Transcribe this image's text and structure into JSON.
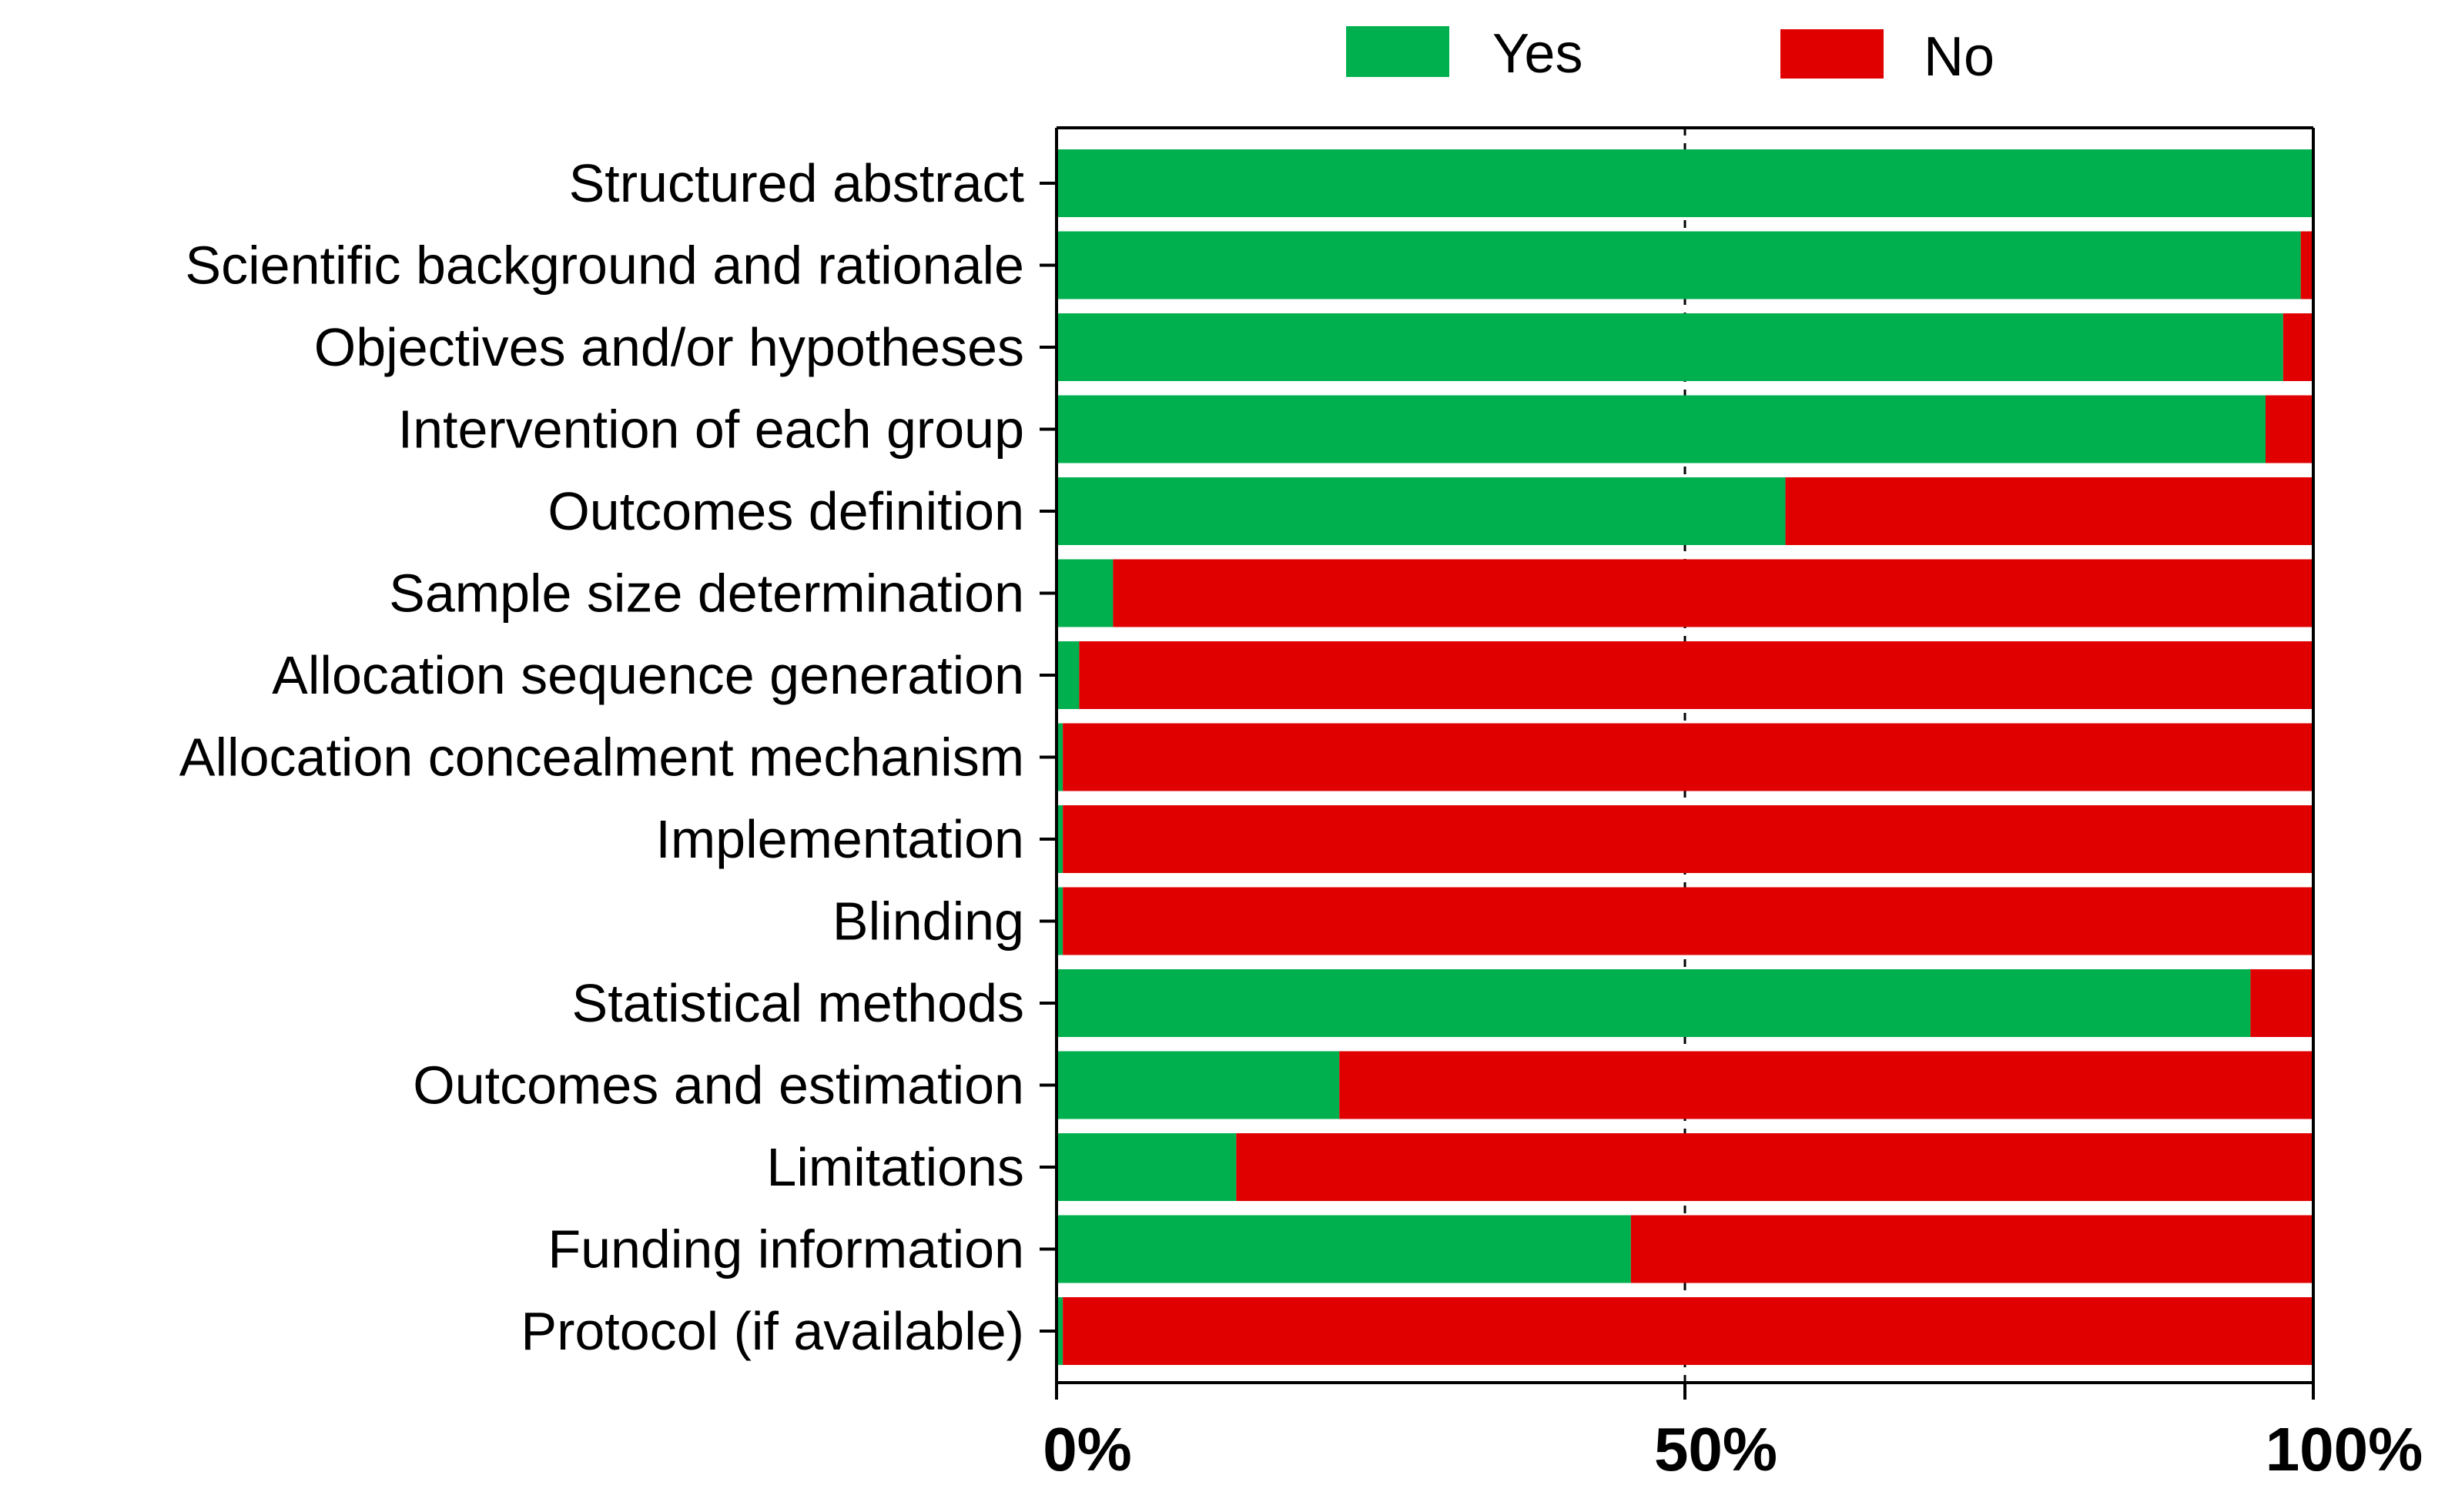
{
  "chart_data": {
    "type": "bar",
    "orientation": "horizontal",
    "stacked": true,
    "title": "",
    "xlabel": "",
    "ylabel": "",
    "xlim": [
      0,
      100
    ],
    "x_ticks": [
      {
        "value": 0,
        "label": "0%"
      },
      {
        "value": 50,
        "label": "50%"
      },
      {
        "value": 100,
        "label": "100%"
      }
    ],
    "gridlines": "dashed vertical at 50%",
    "legend_position": "top",
    "categories": [
      "Structured abstract",
      "Scientific background and rationale",
      "Objectives and/or hypotheses",
      "Intervention of each group",
      "Outcomes definition",
      "Sample size determination",
      "Allocation sequence generation",
      "Allocation concealment mechanism",
      "Implementation",
      "Blinding",
      "Statistical methods",
      "Outcomes and estimation",
      "Limitations",
      "Funding information",
      "Protocol (if available)"
    ],
    "series": [
      {
        "name": "Yes",
        "color": "#00b04f",
        "values": [
          100,
          99,
          97.6,
          96.2,
          58,
          4.5,
          1.8,
          0.5,
          0.5,
          0.5,
          95,
          22.5,
          14.3,
          45.7,
          0.5
        ]
      },
      {
        "name": "No",
        "color": "#e00000",
        "values": [
          0,
          1,
          2.4,
          3.8,
          42,
          95.5,
          98.2,
          99.5,
          99.5,
          99.5,
          5,
          77.5,
          85.7,
          54.3,
          99.5
        ]
      }
    ]
  }
}
